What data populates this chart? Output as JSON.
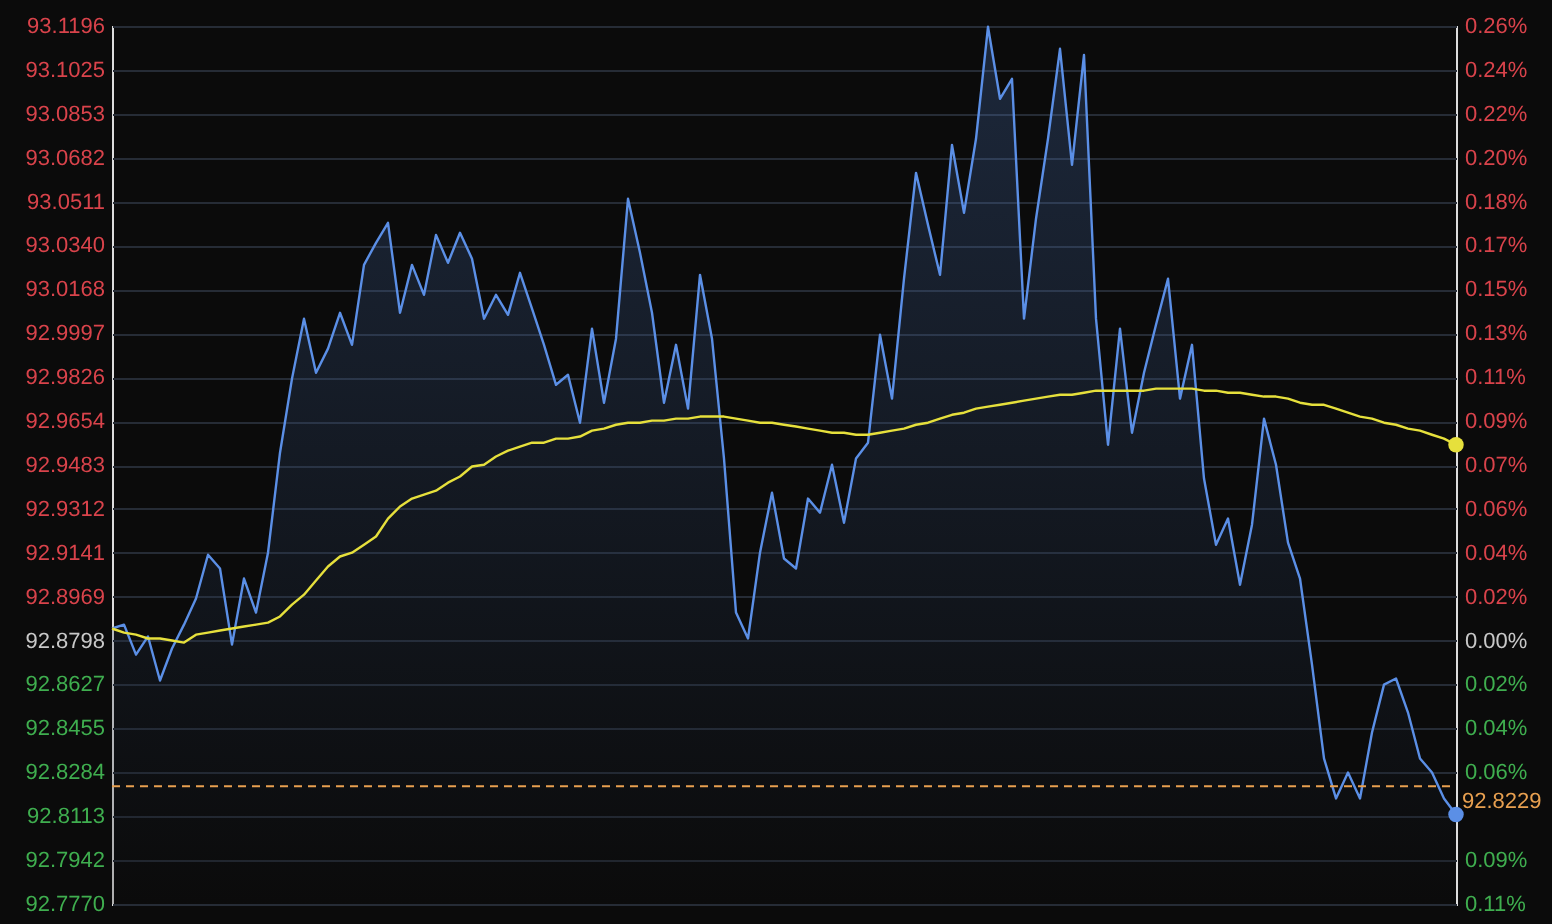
{
  "chart_data": {
    "type": "area",
    "categories": [
      null,
      null,
      null,
      null,
      null,
      null,
      null,
      null,
      null,
      null,
      null,
      null,
      null,
      null,
      null,
      null,
      null,
      null,
      null,
      null,
      null,
      null,
      null,
      null,
      null,
      null,
      null,
      null,
      null,
      null,
      null,
      null,
      null,
      null,
      null,
      null,
      null,
      null,
      null,
      null,
      null,
      null,
      null,
      null,
      null,
      null,
      null,
      null,
      null,
      null,
      null,
      null,
      null,
      null,
      null,
      null,
      null,
      null,
      null,
      null,
      null,
      null,
      null,
      null,
      null,
      null,
      null,
      null,
      null,
      null,
      null,
      null,
      null,
      null,
      null,
      null,
      null,
      null,
      null,
      null,
      null,
      null,
      null,
      null,
      null,
      null,
      null,
      null,
      null,
      null,
      null,
      null,
      null,
      null,
      null,
      null,
      null,
      null,
      null,
      null,
      null,
      null,
      null,
      null,
      null,
      null,
      null,
      null,
      null,
      null,
      null,
      null,
      null
    ],
    "series": [
      {
        "type": "area",
        "color": "#5b8fe6",
        "values": [
          92.8845,
          92.886,
          92.8743,
          92.8814,
          92.8642,
          92.8767,
          92.886,
          92.8962,
          92.9133,
          92.9079,
          92.8782,
          92.904,
          92.8907,
          92.9141,
          92.9531,
          92.982,
          93.0054,
          92.9843,
          92.9937,
          93.0077,
          92.9952,
          93.0264,
          93.035,
          93.0428,
          93.0077,
          93.0264,
          93.0147,
          93.0381,
          93.0272,
          93.0389,
          93.0288,
          93.0054,
          93.0147,
          93.0069,
          93.0233,
          93.0093,
          92.9952,
          92.9796,
          92.9835,
          92.9648,
          93.0015,
          92.9726,
          92.9976,
          93.0522,
          93.0311,
          93.0077,
          92.9726,
          92.9952,
          92.9703,
          93.0225,
          92.9976,
          92.9508,
          92.8907,
          92.8806,
          92.9141,
          92.9375,
          92.9118,
          92.9079,
          92.9352,
          92.9297,
          92.9484,
          92.9258,
          92.9508,
          92.957,
          92.9991,
          92.9742,
          93.021,
          93.0623,
          93.042,
          93.0225,
          93.0732,
          93.0467,
          93.0756,
          93.1193,
          93.0912,
          93.099,
          93.0054,
          93.0444,
          93.0756,
          93.1107,
          93.0654,
          93.1083,
          93.0054,
          92.9562,
          93.0015,
          92.9609,
          92.9843,
          93.003,
          93.021,
          92.9742,
          92.9952,
          92.943,
          92.9172,
          92.9274,
          92.9016,
          92.925,
          92.9664,
          92.9484,
          92.918,
          92.904,
          92.8704,
          92.8338,
          92.8182,
          92.8283,
          92.8182,
          92.8439,
          92.8626,
          92.865,
          92.8517,
          92.8338,
          92.8283,
          92.8182,
          92.8119
        ]
      },
      {
        "type": "line",
        "color": "#e6e03c",
        "values": [
          92.8845,
          92.8829,
          92.8821,
          92.8806,
          92.8806,
          92.8798,
          92.879,
          92.8821,
          92.8829,
          92.8837,
          92.8845,
          92.8853,
          92.886,
          92.8868,
          92.8892,
          92.8938,
          92.8977,
          92.9032,
          92.9087,
          92.9126,
          92.9141,
          92.9172,
          92.9204,
          92.9274,
          92.9321,
          92.9352,
          92.9367,
          92.9383,
          92.9414,
          92.9438,
          92.9477,
          92.9484,
          92.9516,
          92.9539,
          92.9555,
          92.957,
          92.957,
          92.9586,
          92.9586,
          92.9594,
          92.9617,
          92.9625,
          92.964,
          92.9648,
          92.9648,
          92.9656,
          92.9656,
          92.9664,
          92.9664,
          92.9672,
          92.9672,
          92.9672,
          92.9664,
          92.9656,
          92.9648,
          92.9648,
          92.964,
          92.9633,
          92.9625,
          92.9617,
          92.9609,
          92.9609,
          92.9601,
          92.9601,
          92.9609,
          92.9617,
          92.9625,
          92.964,
          92.9648,
          92.9664,
          92.9679,
          92.9687,
          92.9703,
          92.9711,
          92.9718,
          92.9726,
          92.9734,
          92.9742,
          92.975,
          92.9757,
          92.9757,
          92.9765,
          92.9773,
          92.9773,
          92.9773,
          92.9773,
          92.9773,
          92.9781,
          92.9781,
          92.9781,
          92.9781,
          92.9773,
          92.9773,
          92.9765,
          92.9765,
          92.9757,
          92.975,
          92.975,
          92.9742,
          92.9726,
          92.9718,
          92.9718,
          92.9703,
          92.9687,
          92.9672,
          92.9664,
          92.9648,
          92.964,
          92.9625,
          92.9617,
          92.9601,
          92.9586,
          92.9562
        ]
      }
    ],
    "ylim": [
      92.777,
      93.1196
    ],
    "yticks": [
      93.1196,
      93.1025,
      93.0853,
      93.0682,
      93.0511,
      {
        "value": 93.034,
        "label": "93.0340"
      },
      93.0168,
      92.9997,
      92.9826,
      92.9654,
      92.9483,
      92.9312,
      92.9141,
      92.8969,
      92.8798,
      92.8627,
      92.8455,
      92.8284,
      92.8113,
      92.7942,
      {
        "value": 92.777,
        "label": "92.7770"
      }
    ],
    "y2lim": [
      -0.1107,
      0.2582
    ],
    "y2ticks": [
      {
        "value": 0.2582,
        "label": "0.26%"
      },
      {
        "value": 0.2397,
        "label": "0.24%"
      },
      {
        "value": 0.2213,
        "label": "0.22%"
      },
      {
        "value": 0.2028,
        "label": "0.20%"
      },
      {
        "value": 0.1844,
        "label": "0.18%"
      },
      {
        "value": 0.166,
        "label": "0.17%"
      },
      {
        "value": 0.1475,
        "label": "0.15%"
      },
      {
        "value": 0.1291,
        "label": "0.13%"
      },
      {
        "value": 0.1107,
        "label": "0.11%"
      },
      {
        "value": 0.0922,
        "label": "0.09%"
      },
      {
        "value": 0.0738,
        "label": "0.07%"
      },
      {
        "value": 0.0553,
        "label": "0.06%"
      },
      {
        "value": 0.0369,
        "label": "0.04%"
      },
      {
        "value": 0.0184,
        "label": "0.02%"
      },
      {
        "value": 0,
        "label": "0.00%"
      },
      {
        "value": -0.0184,
        "label": "0.02%"
      },
      {
        "value": -0.0369,
        "label": "0.04%"
      },
      {
        "value": -0.0553,
        "label": "0.06%"
      },
      {
        "value": -0.0738,
        "label": null
      },
      {
        "value": -0.0922,
        "label": "0.09%"
      },
      {
        "value": -0.1107,
        "label": "0.11%"
      }
    ],
    "ref_lines": [
      {
        "axis": "y",
        "value": 92.8229,
        "label": "92.8229",
        "color": "#e8a050",
        "line_style": "dashed"
      }
    ],
    "grid": "y",
    "tick_labels": "y"
  }
}
